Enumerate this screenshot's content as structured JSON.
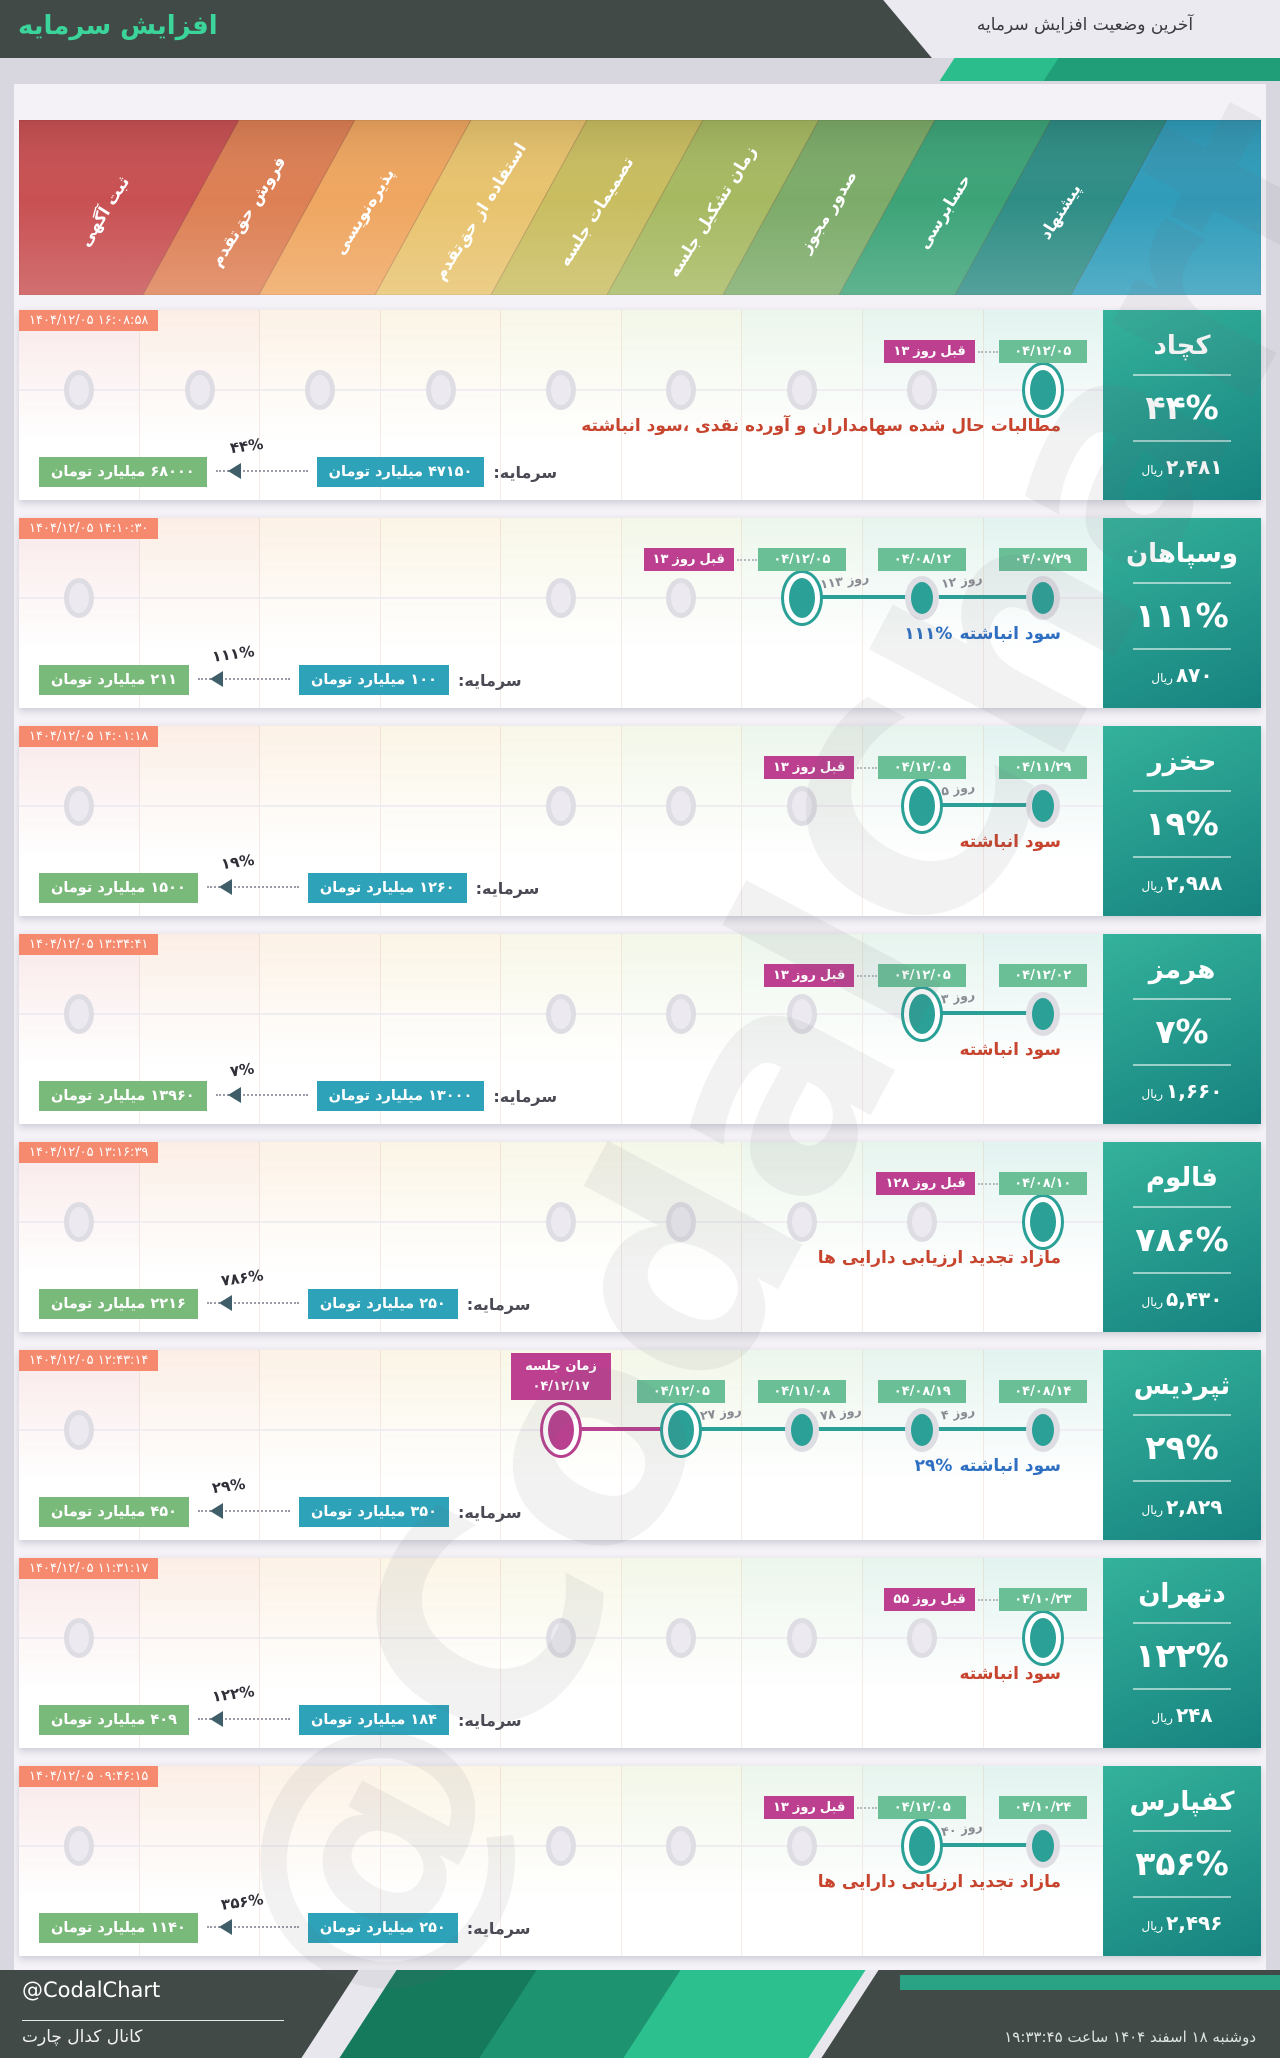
{
  "header": {
    "title": "افزایش سرمایه",
    "subtitle": "آخرین وضعیت افزایش سرمایه"
  },
  "band": {
    "stages": [
      {
        "label": "ثبت آگهی",
        "color": "#c85052"
      },
      {
        "label": "فروش حق‌تقدم",
        "color": "#dd7f54"
      },
      {
        "label": "پذیره‌نویسی",
        "color": "#efa660"
      },
      {
        "label": "استفاده از حق‌تقدم",
        "color": "#e8c36e"
      },
      {
        "label": "تصمیمات جلسه",
        "color": "#c9bd60"
      },
      {
        "label": "زمان تشکیل جلسه",
        "color": "#a6b961"
      },
      {
        "label": "صدور مجوز",
        "color": "#7cab69"
      },
      {
        "label": "حسابرسی",
        "color": "#3ca377"
      },
      {
        "label": "پیشنهاد",
        "color": "#2e8d85"
      }
    ],
    "extra_color": "#2f9cba"
  },
  "chart_data": {
    "type": "timeline",
    "title": "آخرین وضعیت افزایش سرمایه",
    "stage_axis": [
      "ثبت آگهی",
      "فروش حق‌تقدم",
      "پذیره‌نویسی",
      "استفاده از حق‌تقدم",
      "تصمیمات جلسه",
      "زمان تشکیل جلسه",
      "صدور مجوز",
      "حسابرسی",
      "پیشنهاد"
    ],
    "rows": [
      {
        "company": "کچاد",
        "increase_percent": "۴۴%",
        "price": "۲,۴۸۱",
        "price_unit": "ریال",
        "updated": "۱۴۰۴/۱۲/۰۵ ۱۶:۰۸:۵۸",
        "note": "مطالبات حال شده سهامداران و آورده نقدی ،سود انباشته",
        "note_pct": "",
        "note_color": "#c7442e",
        "capital_label": "سرمایه:",
        "capital_from": "۴۷۱۵۰ میلیارد تومان",
        "capital_to": "۶۸۰۰۰ میلیارد تومان",
        "capital_pct": "۴۴%",
        "gray_cols": [
          1,
          2,
          3,
          4,
          5,
          6,
          7,
          8
        ],
        "events": [
          {
            "col": 9,
            "date": "۰۴/۱۲/۰۵",
            "ringed": true,
            "ago": "۱۳ روز قبل"
          }
        ],
        "gaps": []
      },
      {
        "company": "وسپاهان",
        "increase_percent": "۱۱۱%",
        "price": "۸۷۰",
        "price_unit": "ریال",
        "updated": "۱۴۰۴/۱۲/۰۵ ۱۴:۱۰:۳۰",
        "note": "سود انباشته",
        "note_pct": "۱۱۱%",
        "note_color": "#2e6fc2",
        "capital_label": "سرمایه:",
        "capital_from": "۱۰۰ میلیارد تومان",
        "capital_to": "۲۱۱ میلیارد تومان",
        "capital_pct": "۱۱۱%",
        "gray_cols": [
          1,
          5,
          6
        ],
        "events": [
          {
            "col": 7,
            "date": "۰۴/۱۲/۰۵",
            "ringed": true,
            "ago": "۱۳ روز قبل"
          },
          {
            "col": 8,
            "date": "۰۴/۰۸/۱۲"
          },
          {
            "col": 9,
            "date": "۰۴/۰۷/۲۹"
          }
        ],
        "gaps": [
          {
            "from": 7,
            "to": 8,
            "label": "۱۱۳ روز"
          },
          {
            "from": 8,
            "to": 9,
            "label": "۱۲ روز"
          }
        ]
      },
      {
        "company": "حخزر",
        "increase_percent": "۱۹%",
        "price": "۲,۹۸۸",
        "price_unit": "ریال",
        "updated": "۱۴۰۴/۱۲/۰۵ ۱۴:۰۱:۱۸",
        "note": "سود انباشته",
        "note_pct": "",
        "note_color": "#c7442e",
        "capital_label": "سرمایه:",
        "capital_from": "۱۲۶۰ میلیارد تومان",
        "capital_to": "۱۵۰۰ میلیارد تومان",
        "capital_pct": "۱۹%",
        "gray_cols": [
          1,
          5,
          6,
          7
        ],
        "events": [
          {
            "col": 8,
            "date": "۰۴/۱۲/۰۵",
            "ringed": true,
            "ago": "۱۳ روز قبل"
          },
          {
            "col": 9,
            "date": "۰۴/۱۱/۲۹"
          }
        ],
        "gaps": [
          {
            "from": 8,
            "to": 9,
            "label": "۵ روز"
          }
        ]
      },
      {
        "company": "هرمز",
        "increase_percent": "۷%",
        "price": "۱,۶۶۰",
        "price_unit": "ریال",
        "updated": "۱۴۰۴/۱۲/۰۵ ۱۳:۳۴:۴۱",
        "note": "سود انباشته",
        "note_pct": "",
        "note_color": "#c7442e",
        "capital_label": "سرمایه:",
        "capital_from": "۱۳۰۰۰ میلیارد تومان",
        "capital_to": "۱۳۹۶۰ میلیارد تومان",
        "capital_pct": "۷%",
        "gray_cols": [
          1,
          5,
          6,
          7
        ],
        "events": [
          {
            "col": 8,
            "date": "۰۴/۱۲/۰۵",
            "ringed": true,
            "ago": "۱۳ روز قبل"
          },
          {
            "col": 9,
            "date": "۰۴/۱۲/۰۲"
          }
        ],
        "gaps": [
          {
            "from": 8,
            "to": 9,
            "label": "۳ روز"
          }
        ]
      },
      {
        "company": "فالوم",
        "increase_percent": "۷۸۶%",
        "price": "۵,۴۳۰",
        "price_unit": "ریال",
        "updated": "۱۴۰۴/۱۲/۰۵ ۱۳:۱۶:۳۹",
        "note": "مازاد تجدید ارزیابی دارایی ها",
        "note_pct": "",
        "note_color": "#c7442e",
        "capital_label": "سرمایه:",
        "capital_from": "۲۵۰ میلیارد تومان",
        "capital_to": "۲۲۱۶ میلیارد تومان",
        "capital_pct": "۷۸۶%",
        "gray_cols": [
          1,
          5,
          6,
          7,
          8
        ],
        "events": [
          {
            "col": 9,
            "date": "۰۴/۰۸/۱۰",
            "ringed": true,
            "ago": "۱۲۸ روز قبل"
          }
        ],
        "gaps": []
      },
      {
        "company": "ثپردیس",
        "increase_percent": "۲۹%",
        "price": "۲,۸۲۹",
        "price_unit": "ریال",
        "updated": "۱۴۰۴/۱۲/۰۵ ۱۲:۴۳:۱۴",
        "note": "سود انباشته",
        "note_pct": "۲۹%",
        "note_color": "#2e6fc2",
        "capital_label": "سرمایه:",
        "capital_from": "۳۵۰ میلیارد تومان",
        "capital_to": "۴۵۰ میلیارد تومان",
        "capital_pct": "۲۹%",
        "gray_cols": [
          1
        ],
        "events": [
          {
            "col": 5,
            "badge": [
              "زمان جلسه",
              "۰۴/۱۲/۱۷"
            ],
            "magenta": true,
            "ringed": true
          },
          {
            "col": 6,
            "date": "۰۴/۱۲/۰۵",
            "ringed": true
          },
          {
            "col": 7,
            "date": "۰۴/۱۱/۰۸"
          },
          {
            "col": 8,
            "date": "۰۴/۰۸/۱۹"
          },
          {
            "col": 9,
            "date": "۰۴/۰۸/۱۴"
          }
        ],
        "gaps": [
          {
            "from": 6,
            "to": 7,
            "label": "۲۷ روز"
          },
          {
            "from": 7,
            "to": 8,
            "label": "۷۸ روز"
          },
          {
            "from": 8,
            "to": 9,
            "label": "۴ روز"
          }
        ]
      },
      {
        "company": "دتهران",
        "increase_percent": "۱۲۲%",
        "price": "۲۴۸",
        "price_unit": "ریال",
        "updated": "۱۴۰۴/۱۲/۰۵ ۱۱:۳۱:۱۷",
        "note": "سود انباشته",
        "note_pct": "",
        "note_color": "#c7442e",
        "capital_label": "سرمایه:",
        "capital_from": "۱۸۴ میلیارد تومان",
        "capital_to": "۴۰۹ میلیارد تومان",
        "capital_pct": "۱۲۲%",
        "gray_cols": [
          1,
          5,
          6,
          7,
          8
        ],
        "events": [
          {
            "col": 9,
            "date": "۰۴/۱۰/۲۳",
            "ringed": true,
            "ago": "۵۵ روز قبل"
          }
        ],
        "gaps": []
      },
      {
        "company": "کفپارس",
        "increase_percent": "۳۵۶%",
        "price": "۲,۴۹۶",
        "price_unit": "ریال",
        "updated": "۱۴۰۴/۱۲/۰۵ ۰۹:۴۶:۱۵",
        "note": "مازاد تجدید ارزیابی دارایی ها",
        "note_pct": "",
        "note_color": "#c7442e",
        "capital_label": "سرمایه:",
        "capital_from": "۲۵۰ میلیارد تومان",
        "capital_to": "۱۱۴۰ میلیارد تومان",
        "capital_pct": "۳۵۶%",
        "gray_cols": [
          1,
          5,
          6,
          7
        ],
        "events": [
          {
            "col": 8,
            "date": "۰۴/۱۲/۰۵",
            "ringed": true,
            "ago": "۱۳ روز قبل"
          },
          {
            "col": 9,
            "date": "۰۴/۱۰/۲۴"
          }
        ],
        "gaps": [
          {
            "from": 8,
            "to": 9,
            "label": "۴۰ روز"
          }
        ]
      }
    ]
  },
  "footer": {
    "handle": "@CodalChart",
    "channel": "کانال کدال چارت",
    "datetime": "دوشنبه ۱۸ اسفند ۱۴۰۴ ساعت ۱۹:۳۳:۴۵"
  },
  "watermark": "@CodalChart"
}
